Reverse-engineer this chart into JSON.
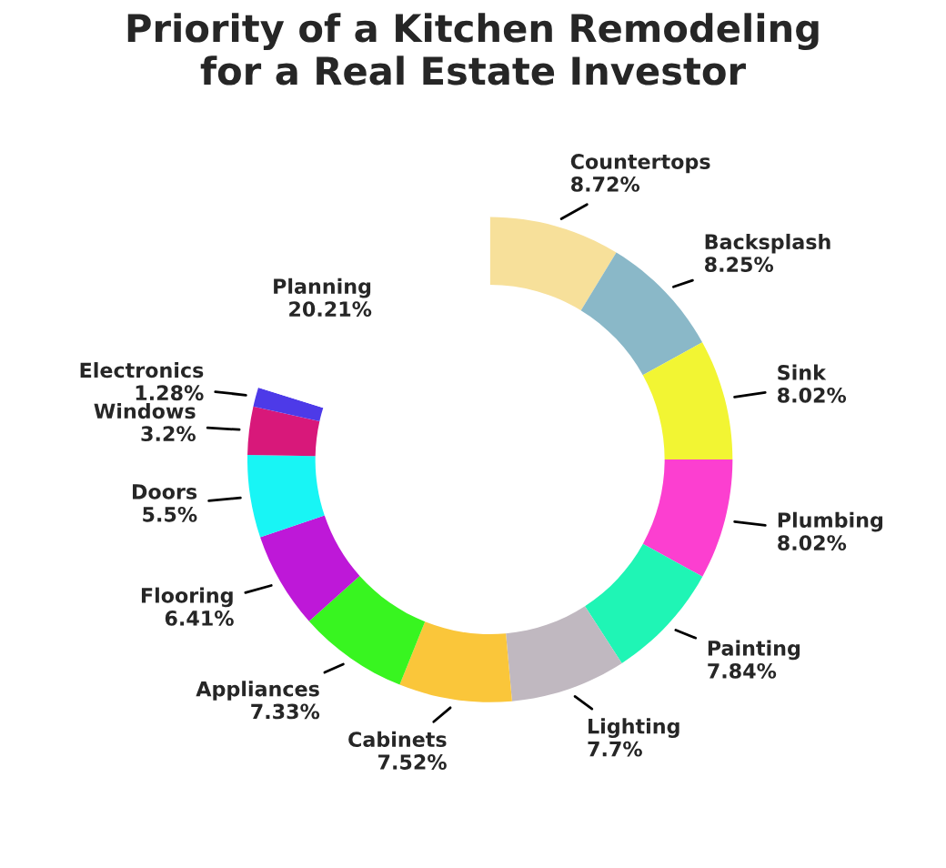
{
  "chart_data": {
    "type": "donut",
    "title": "Priority of a Kitchen Remodeling\nfor a Real Estate Investor",
    "categories": [
      "Countertops",
      "Backsplash",
      "Sink",
      "Plumbing",
      "Painting",
      "Lighting",
      "Cabinets",
      "Appliances",
      "Flooring",
      "Doors",
      "Windows",
      "Electronics",
      "Planning"
    ],
    "values": [
      8.72,
      8.25,
      8.02,
      8.02,
      7.84,
      7.7,
      7.52,
      7.33,
      6.41,
      5.5,
      3.2,
      1.28,
      20.21
    ],
    "value_labels": [
      "8.72%",
      "8.25%",
      "8.02%",
      "8.02%",
      "7.84%",
      "7.7%",
      "7.52%",
      "7.33%",
      "6.41%",
      "5.5%",
      "3.2%",
      "1.28%",
      "20.21%"
    ],
    "colors": [
      "#f7e09a",
      "#8ab8c8",
      "#f2f533",
      "#fc3fd0",
      "#1ff5b5",
      "#c0b8c0",
      "#fac63a",
      "#38f520",
      "#be18d8",
      "#18f5f5",
      "#d8187a",
      "#4d3ae8",
      "#ffffff"
    ],
    "legend": false
  }
}
